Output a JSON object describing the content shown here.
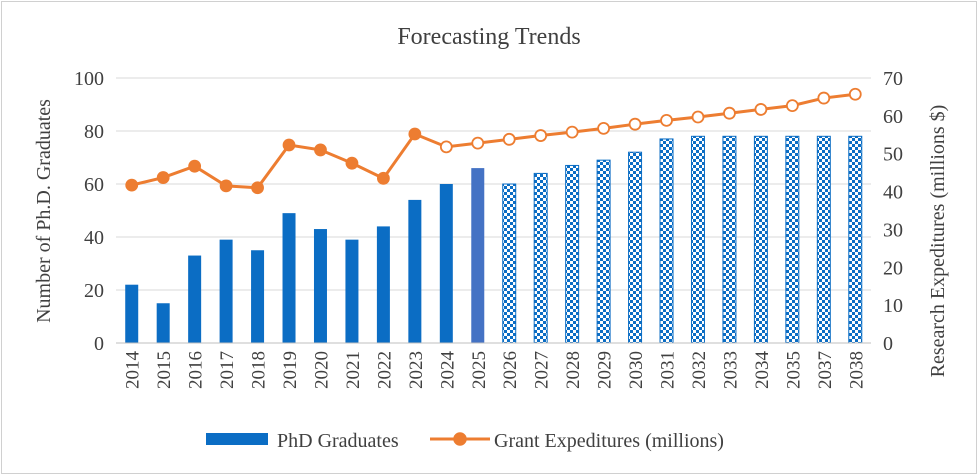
{
  "chart_data": {
    "type": "bar+line",
    "title": "Forecasting Trends",
    "categories": [
      "2014",
      "2015",
      "2016",
      "2017",
      "2018",
      "2019",
      "2020",
      "2021",
      "2022",
      "2023",
      "2024",
      "2025",
      "2026",
      "2027",
      "2028",
      "2029",
      "2030",
      "2031",
      "2032",
      "2033",
      "2034",
      "2035",
      "2037",
      "2038"
    ],
    "ylabel_left": "Number of Ph.D. Graduates",
    "ylabel_right": "Research Expeditures (millions $)",
    "ylim_left": [
      0,
      100
    ],
    "ylim_right": [
      0,
      70
    ],
    "yticks_left": [
      "0",
      "20",
      "40",
      "60",
      "80",
      "100"
    ],
    "yticks_right": [
      "0",
      "10",
      "20",
      "30",
      "40",
      "50",
      "60",
      "70"
    ],
    "grid": true,
    "legend_position": "bottom",
    "series": [
      {
        "name": "PhD Graduates",
        "kind": "bar",
        "axis": "left",
        "color": "#0b6dc4",
        "highlight_color": "#4472c4",
        "values": [
          22,
          15,
          33,
          39,
          35,
          49,
          43,
          39,
          44,
          54,
          60,
          66,
          60,
          64,
          67,
          69,
          72,
          77,
          78,
          78,
          78,
          78,
          78,
          78
        ],
        "style": [
          "solid",
          "solid",
          "solid",
          "solid",
          "solid",
          "solid",
          "solid",
          "solid",
          "solid",
          "solid",
          "solid",
          "highlight",
          "checker",
          "checker",
          "checker",
          "checker",
          "checker",
          "checker",
          "checker",
          "checker",
          "checker",
          "checker",
          "checker",
          "checker"
        ]
      },
      {
        "name": "Grant Expeditures (millions)",
        "kind": "line",
        "axis": "right",
        "color": "#ed7d31",
        "values": [
          41.7,
          43.7,
          46.7,
          41.5,
          41.0,
          52.3,
          51.0,
          47.5,
          43.5,
          55.2,
          51.8,
          52.8,
          53.8,
          54.8,
          55.7,
          56.7,
          57.8,
          58.8,
          59.7,
          60.7,
          61.7,
          62.7,
          64.7,
          65.7
        ],
        "marker_fill": [
          "#ed7d31",
          "#ed7d31",
          "#ed7d31",
          "#ed7d31",
          "#ed7d31",
          "#ed7d31",
          "#ed7d31",
          "#ed7d31",
          "#ed7d31",
          "#ed7d31",
          "#ffffff",
          "#ffffff",
          "#ffffff",
          "#ffffff",
          "#ffffff",
          "#ffffff",
          "#ffffff",
          "#ffffff",
          "#ffffff",
          "#ffffff",
          "#ffffff",
          "#ffffff",
          "#ffffff",
          "#ffffff"
        ]
      }
    ]
  }
}
